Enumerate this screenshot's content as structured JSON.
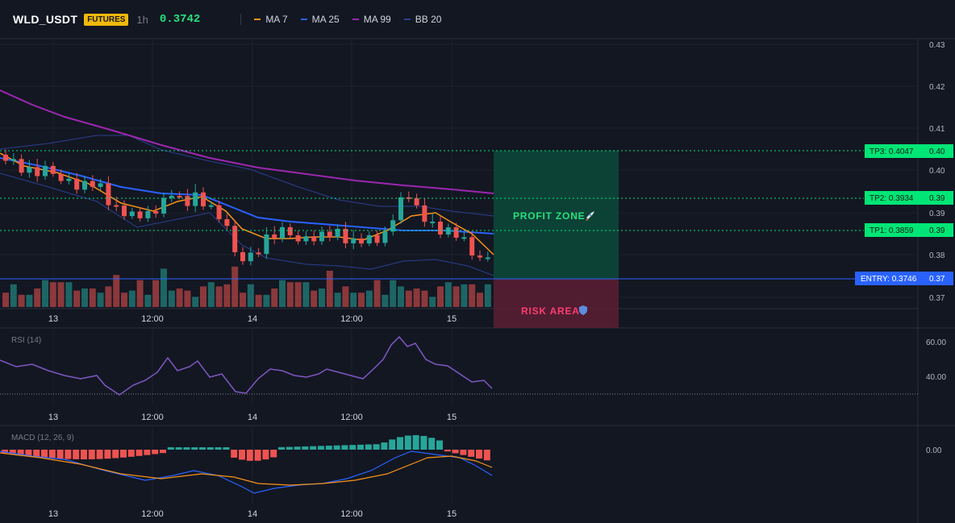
{
  "header": {
    "symbol": "WLD_USDT",
    "badge": "FUTURES",
    "timeframe": "1h",
    "price": "0.3742",
    "legend": [
      {
        "label": "MA 7",
        "color": "#f7931a",
        "icon": "line-swatch-icon"
      },
      {
        "label": "MA 25",
        "color": "#2962ff",
        "icon": "line-swatch-icon"
      },
      {
        "label": "MA 99",
        "color": "#9c27b0",
        "icon": "line-swatch-icon"
      },
      {
        "label": "BB 20",
        "color": "#2a3f8f",
        "icon": "line-swatch-icon"
      }
    ]
  },
  "price_axis": [
    "0.43",
    "0.42",
    "0.41",
    "0.40",
    "0.39",
    "0.38",
    "0.37"
  ],
  "time_axis": [
    "13",
    "12:00",
    "14",
    "12:00",
    "15"
  ],
  "levels": {
    "tp3": {
      "label": "TP3: 0.4047",
      "axis": "0.40"
    },
    "tp2": {
      "label": "TP2: 0.3934",
      "axis": "0.39"
    },
    "tp1": {
      "label": "TP1: 0.3859",
      "axis": "0.39"
    },
    "entry": {
      "label": "ENTRY: 0.3746",
      "axis": "0.37"
    }
  },
  "zones": {
    "profit": "PROFIT ZONE",
    "profit_icon": "rocket-icon",
    "risk": "RISK AREA",
    "risk_icon": "shield-icon"
  },
  "rsi": {
    "title": "RSI (14)",
    "axis": [
      "60.00",
      "40.00"
    ]
  },
  "macd": {
    "title": "MACD (12, 26, 9)",
    "axis": [
      "0.00"
    ]
  },
  "colors": {
    "up": "#26a69a",
    "down": "#ef5350",
    "profit_zone": "#0c4a3a",
    "risk_zone": "#5c1f33",
    "tp_label": "#00e676",
    "entry_label": "#2962ff",
    "rsi_line": "#7e57c2"
  }
}
